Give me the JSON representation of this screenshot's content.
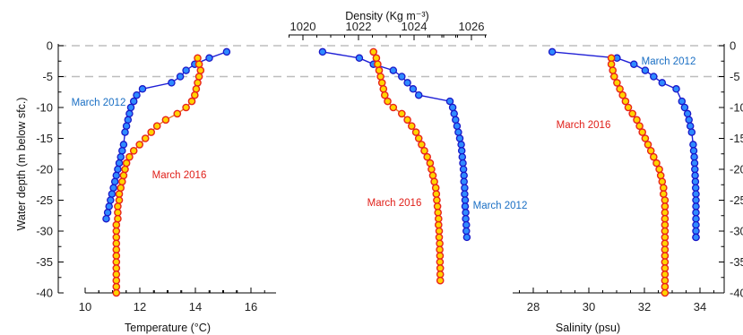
{
  "chart_data": [
    {
      "type": "scatter",
      "panel": "temperature",
      "xlabel": "Temperature (°C)",
      "ylabel": "Water depth (m below sfc.)",
      "xlim": [
        9.5,
        17
      ],
      "ylim": [
        -40,
        0
      ],
      "xticks": [
        "10",
        "12",
        "14",
        "16"
      ],
      "yticks": [
        "0",
        "-5",
        "-10",
        "-15",
        "-20",
        "-25",
        "-30",
        "-35",
        "-40"
      ],
      "grid_depths": [
        0,
        -5
      ],
      "series": [
        {
          "name": "March 2012",
          "label": "March 2012",
          "color": "#2f8bff",
          "x": [
            15.3,
            14.7,
            14.2,
            13.9,
            13.7,
            13.4,
            12.4,
            12.2,
            12.1,
            12.0,
            11.95,
            11.9,
            11.85,
            11.8,
            11.75,
            11.7,
            11.65,
            11.6,
            11.55,
            11.5,
            11.45,
            11.4,
            11.35,
            11.3,
            11.25,
            11.2,
            11.15
          ],
          "y": [
            -1,
            -2,
            -3,
            -4,
            -5,
            -6,
            -7,
            -8,
            -9,
            -10,
            -11,
            -12,
            -13,
            -14,
            -16,
            -17,
            -18,
            -19,
            -20,
            -21,
            -22,
            -23,
            -24,
            -25,
            -26,
            -27,
            -28
          ]
        },
        {
          "name": "March 2016",
          "label": "March 2016",
          "color": "#ffd400",
          "x": [
            14.3,
            14.35,
            14.4,
            14.35,
            14.3,
            14.25,
            14.2,
            14.1,
            13.9,
            13.6,
            13.2,
            12.9,
            12.7,
            12.5,
            12.3,
            12.1,
            11.95,
            11.85,
            11.8,
            11.75,
            11.7,
            11.65,
            11.6,
            11.6,
            11.55,
            11.55,
            11.55,
            11.5,
            11.5,
            11.5,
            11.5,
            11.5,
            11.5,
            11.5,
            11.5,
            11.5,
            11.5,
            11.5,
            11.5
          ],
          "y": [
            -2,
            -3,
            -4,
            -5,
            -6,
            -7,
            -8,
            -9,
            -10,
            -11,
            -12,
            -13,
            -14,
            -15,
            -16,
            -17,
            -18,
            -19,
            -20,
            -21,
            -22,
            -23,
            -24,
            -25,
            -26,
            -27,
            -28,
            -29,
            -30,
            -31,
            -32,
            -33,
            -34,
            -35,
            -36,
            -37,
            -38,
            -39,
            -40
          ]
        }
      ]
    },
    {
      "type": "scatter",
      "panel": "density",
      "xlabel": "Density (Kg m⁻³)",
      "xlim": [
        1019.5,
        1026.5
      ],
      "ylim": [
        -40,
        0
      ],
      "xticks": [
        "1020",
        "1022",
        "1024",
        "1026"
      ],
      "series": [
        {
          "name": "March 2012",
          "label": "March 2012",
          "color": "#2f8bff",
          "x": [
            1020.7,
            1022.0,
            1022.5,
            1023.2,
            1023.5,
            1023.7,
            1023.9,
            1024.1,
            1025.2,
            1025.3,
            1025.35,
            1025.4,
            1025.45,
            1025.5,
            1025.55,
            1025.6,
            1025.62,
            1025.64,
            1025.66,
            1025.68,
            1025.7,
            1025.7,
            1025.72,
            1025.72,
            1025.74,
            1025.74,
            1025.76,
            1025.76,
            1025.78,
            1025.78,
            1025.8
          ],
          "y": [
            -1,
            -2,
            -3,
            -4,
            -5,
            -6,
            -7,
            -8,
            -9,
            -10,
            -11,
            -12,
            -13,
            -14,
            -15,
            -16,
            -17,
            -18,
            -19,
            -20,
            -21,
            -22,
            -23,
            -24,
            -25,
            -26,
            -27,
            -28,
            -29,
            -30,
            -31
          ]
        },
        {
          "name": "March 2016",
          "label": "March 2016",
          "color": "#ffd400",
          "x": [
            1022.5,
            1022.6,
            1022.65,
            1022.7,
            1022.75,
            1022.8,
            1022.85,
            1022.9,
            1023.0,
            1023.2,
            1023.5,
            1023.7,
            1023.85,
            1024.0,
            1024.1,
            1024.2,
            1024.3,
            1024.4,
            1024.5,
            1024.55,
            1024.6,
            1024.65,
            1024.7,
            1024.72,
            1024.74,
            1024.76,
            1024.78,
            1024.8,
            1024.8,
            1024.82,
            1024.82,
            1024.84,
            1024.84,
            1024.85,
            1024.85,
            1024.86,
            1024.86,
            1024.86
          ],
          "y": [
            -1,
            -2,
            -3,
            -4,
            -5,
            -6,
            -7,
            -8,
            -9,
            -10,
            -11,
            -12,
            -13,
            -14,
            -15,
            -16,
            -17,
            -18,
            -19,
            -20,
            -21,
            -22,
            -23,
            -24,
            -25,
            -26,
            -27,
            -28,
            -29,
            -30,
            -31,
            -32,
            -33,
            -34,
            -35,
            -36,
            -37,
            -38
          ]
        }
      ]
    },
    {
      "type": "scatter",
      "panel": "salinity",
      "xlabel": "Salinity (psu)",
      "xlim": [
        27,
        34.5
      ],
      "ylim": [
        -40,
        0
      ],
      "xticks": [
        "28",
        "30",
        "32",
        "34"
      ],
      "yticks": [
        "0",
        "-5",
        "-10",
        "-15",
        "-20",
        "-25",
        "-30",
        "-35",
        "-40"
      ],
      "series": [
        {
          "name": "March 2012",
          "label": "March 2012",
          "color": "#2f8bff",
          "x": [
            28.4,
            30.7,
            31.3,
            31.7,
            32.0,
            32.3,
            32.8,
            33.0,
            33.1,
            33.2,
            33.25,
            33.3,
            33.35,
            33.4,
            33.42,
            33.44,
            33.45,
            33.46,
            33.47,
            33.48,
            33.49,
            33.5,
            33.5,
            33.5,
            33.5,
            33.5,
            33.5,
            33.5,
            33.5,
            33.5,
            33.5
          ],
          "y": [
            -1,
            -2,
            -3,
            -4,
            -5,
            -6,
            -7,
            -9,
            -10,
            -11,
            -12,
            -13,
            -14,
            -16,
            -17,
            -18,
            -19,
            -20,
            -21,
            -22,
            -23,
            -24,
            -25,
            -26,
            -27,
            -28,
            -29,
            -30,
            -31,
            -31,
            -31
          ]
        },
        {
          "name": "March 2016",
          "label": "March 2016",
          "color": "#ffd400",
          "x": [
            30.5,
            30.5,
            30.55,
            30.6,
            30.7,
            30.8,
            30.9,
            31.0,
            31.1,
            31.25,
            31.4,
            31.5,
            31.6,
            31.7,
            31.8,
            31.9,
            32.0,
            32.1,
            32.2,
            32.25,
            32.3,
            32.35,
            32.35,
            32.4,
            32.4,
            32.4,
            32.4,
            32.4,
            32.4,
            32.4,
            32.4,
            32.4,
            32.4,
            32.4,
            32.4,
            32.4,
            32.4,
            32.4,
            32.4
          ],
          "y": [
            -2,
            -3,
            -4,
            -5,
            -6,
            -7,
            -8,
            -9,
            -10,
            -11,
            -12,
            -13,
            -14,
            -15,
            -16,
            -17,
            -18,
            -19,
            -20,
            -21,
            -22,
            -23,
            -24,
            -25,
            -26,
            -27,
            -28,
            -29,
            -30,
            -31,
            -32,
            -33,
            -34,
            -35,
            -36,
            -37,
            -38,
            -39,
            -40
          ]
        }
      ]
    }
  ]
}
